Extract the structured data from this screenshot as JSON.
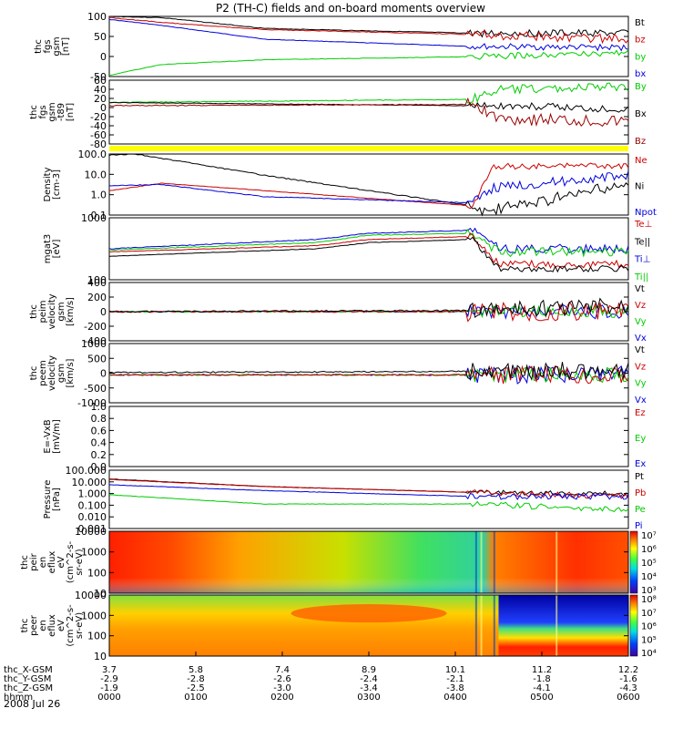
{
  "title": "P2 (TH-C) fields and on-board moments overview",
  "date_label": "2008 Jul 26",
  "colors": {
    "black": "#000000",
    "red": "#cc0000",
    "green": "#00cc00",
    "blue": "#0000dd",
    "yellow": "#ffff00",
    "darkred": "#990000"
  },
  "chart_data": [
    {
      "type": "line",
      "ylabel": [
        "thc",
        "fgs",
        "gsm",
        "[nT]"
      ],
      "yticks": [
        "100",
        "50",
        "0",
        "-50"
      ],
      "series": [
        {
          "name": "Bt",
          "color": "black"
        },
        {
          "name": "bz",
          "color": "red"
        },
        {
          "name": "by",
          "color": "green"
        },
        {
          "name": "bx",
          "color": "blue"
        }
      ],
      "ylim": [
        -60,
        110
      ]
    },
    {
      "type": "line",
      "ylabel": [
        "thc",
        "fgs",
        "gsm",
        "-t89",
        "[nT]"
      ],
      "yticks": [
        "60",
        "40",
        "20",
        "0",
        "-20",
        "-40",
        "-60",
        "-80"
      ],
      "series": [
        {
          "name": "By",
          "color": "green"
        },
        {
          "name": "Bx",
          "color": "black"
        },
        {
          "name": "Bz",
          "color": "darkred"
        }
      ],
      "ylim": [
        -90,
        60
      ]
    },
    {
      "type": "line",
      "ylabel": [
        "Density",
        "[cm-3]"
      ],
      "yticks": [
        "100.0",
        "10.0",
        "1.0",
        "0.1"
      ],
      "log": true,
      "series": [
        {
          "name": "Ne",
          "color": "red"
        },
        {
          "name": "Ni",
          "color": "black"
        },
        {
          "name": "Npot",
          "color": "blue"
        }
      ]
    },
    {
      "type": "line",
      "ylabel": [
        "mgat3",
        "[eV]"
      ],
      "yticks": [
        "1000",
        "100"
      ],
      "log": true,
      "series": [
        {
          "name": "Te⊥",
          "color": "red"
        },
        {
          "name": "Te||",
          "color": "black"
        },
        {
          "name": "Ti⊥",
          "color": "blue"
        },
        {
          "name": "Ti||",
          "color": "green"
        }
      ]
    },
    {
      "type": "line",
      "ylabel": [
        "thc",
        "peim",
        "velocity",
        "gsm",
        "[km/s]"
      ],
      "yticks": [
        "400",
        "200",
        "0",
        "-200",
        "-400"
      ],
      "series": [
        {
          "name": "Vt",
          "color": "black"
        },
        {
          "name": "Vz",
          "color": "red"
        },
        {
          "name": "Vy",
          "color": "green"
        },
        {
          "name": "Vx",
          "color": "blue"
        }
      ]
    },
    {
      "type": "line",
      "ylabel": [
        "thc",
        "peem",
        "velocity",
        "gsm",
        "[km/s]"
      ],
      "yticks": [
        "1000",
        "500",
        "0",
        "-500",
        "-1000"
      ],
      "series": [
        {
          "name": "Vt",
          "color": "black"
        },
        {
          "name": "Vz",
          "color": "red"
        },
        {
          "name": "Vy",
          "color": "green"
        },
        {
          "name": "Vx",
          "color": "blue"
        }
      ]
    },
    {
      "type": "line",
      "ylabel": [
        "E=-VxB",
        "[mV/m]"
      ],
      "yticks": [
        "1.0",
        "0.8",
        "0.6",
        "0.4",
        "0.2",
        "0.0"
      ],
      "series": [
        {
          "name": "Ez",
          "color": "red"
        },
        {
          "name": "Ey",
          "color": "green"
        },
        {
          "name": "Ex",
          "color": "blue"
        }
      ]
    },
    {
      "type": "line",
      "ylabel": [
        "Pressure",
        "[nPa]"
      ],
      "yticks": [
        "100.000",
        "10.000",
        "1.000",
        "0.100",
        "0.010",
        "0.001"
      ],
      "log": true,
      "series": [
        {
          "name": "Pt",
          "color": "black"
        },
        {
          "name": "Pb",
          "color": "red"
        },
        {
          "name": "Pe",
          "color": "green"
        },
        {
          "name": "Pi",
          "color": "blue"
        }
      ]
    },
    {
      "type": "heatmap",
      "ylabel": [
        "thc",
        "peir",
        "en",
        "eflux",
        "eV",
        "(cm^2-s-",
        "sr-eV)"
      ],
      "yticks": [
        "10000",
        "1000",
        "100",
        "10"
      ],
      "colorbar_ticks": [
        "10⁷",
        "10⁶",
        "10⁵",
        "10⁴",
        "10³"
      ]
    },
    {
      "type": "heatmap",
      "ylabel": [
        "thc",
        "peer",
        "en",
        "eflux",
        "eV",
        "(cm^2-s-",
        "sr-eV)"
      ],
      "yticks": [
        "10000",
        "1000",
        "100",
        "10"
      ],
      "colorbar_ticks": [
        "10⁸",
        "10⁷",
        "10⁶",
        "10⁵",
        "10⁴"
      ]
    }
  ],
  "x_axis": {
    "rows": [
      {
        "label": "thc_X-GSM",
        "values": [
          "3.7",
          "5.8",
          "7.4",
          "8.9",
          "10.1",
          "11.2",
          "12.2"
        ]
      },
      {
        "label": "thc_Y-GSM",
        "values": [
          "-2.9",
          "-2.8",
          "-2.6",
          "-2.4",
          "-2.1",
          "-1.8",
          "-1.6"
        ]
      },
      {
        "label": "thc_Z-GSM",
        "values": [
          "-1.9",
          "-2.5",
          "-3.0",
          "-3.4",
          "-3.8",
          "-4.1",
          "-4.3"
        ]
      },
      {
        "label": "hhmm",
        "values": [
          "0000",
          "0100",
          "0200",
          "0300",
          "0400",
          "0500",
          "0600"
        ]
      }
    ]
  }
}
